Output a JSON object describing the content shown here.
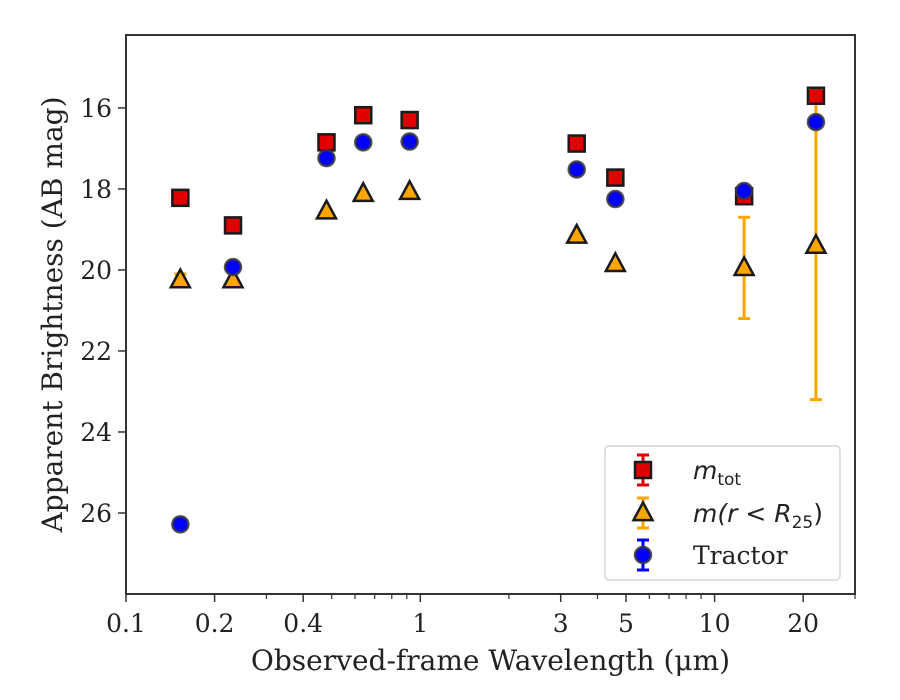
{
  "chart_data": {
    "type": "scatter",
    "title": "",
    "xlabel": "Observed-frame Wavelength (μm)",
    "ylabel": "Apparent Brightness (AB mag)",
    "xscale": "log",
    "xlim": [
      0.1,
      30
    ],
    "ylim": [
      28.0,
      14.2
    ],
    "y_inverted": true,
    "grid": false,
    "legend_position": "bottom-right",
    "xticks": [
      {
        "value": 0.1,
        "label": "0.1"
      },
      {
        "value": 0.2,
        "label": "0.2"
      },
      {
        "value": 0.4,
        "label": "0.4"
      },
      {
        "value": 1,
        "label": "1"
      },
      {
        "value": 3,
        "label": "3"
      },
      {
        "value": 5,
        "label": "5"
      },
      {
        "value": 10,
        "label": "10"
      },
      {
        "value": 20,
        "label": "20"
      }
    ],
    "yticks": [
      {
        "value": 16,
        "label": "16"
      },
      {
        "value": 18,
        "label": "18"
      },
      {
        "value": 20,
        "label": "20"
      },
      {
        "value": 22,
        "label": "22"
      },
      {
        "value": 24,
        "label": "24"
      },
      {
        "value": 26,
        "label": "26"
      }
    ],
    "series": [
      {
        "name": "m_tot",
        "legend_label": {
          "base": "m",
          "sub": "tot"
        },
        "marker": "square",
        "color": "#e00000",
        "edge_color": "#1a1a1a",
        "errorbar_color": "#e00000",
        "points": [
          {
            "x": 0.153,
            "y": 18.22
          },
          {
            "x": 0.231,
            "y": 18.9
          },
          {
            "x": 0.48,
            "y": 16.85
          },
          {
            "x": 0.64,
            "y": 16.18
          },
          {
            "x": 0.92,
            "y": 16.3
          },
          {
            "x": 3.4,
            "y": 16.88
          },
          {
            "x": 4.6,
            "y": 17.72
          },
          {
            "x": 12.6,
            "y": 18.18
          },
          {
            "x": 22.1,
            "y": 15.7
          }
        ]
      },
      {
        "name": "m(r < R25)",
        "legend_label": {
          "base": "m(r < R",
          "sub": "25",
          "suffix": ")"
        },
        "marker": "triangle",
        "color": "#ffa500",
        "edge_color": "#1a1a1a",
        "errorbar_color": "#ffa500",
        "points": [
          {
            "x": 0.153,
            "y": 20.25,
            "yerr": 0.15
          },
          {
            "x": 0.231,
            "y": 20.25
          },
          {
            "x": 0.48,
            "y": 18.55
          },
          {
            "x": 0.64,
            "y": 18.12
          },
          {
            "x": 0.92,
            "y": 18.07
          },
          {
            "x": 3.4,
            "y": 19.15
          },
          {
            "x": 4.6,
            "y": 19.85
          },
          {
            "x": 12.6,
            "y": 19.95,
            "yerr": 1.25
          },
          {
            "x": 22.1,
            "y": 19.4,
            "yerr": 3.8
          }
        ]
      },
      {
        "name": "Tractor",
        "legend_label": {
          "base": "Tractor"
        },
        "marker": "circle",
        "color": "#0000ff",
        "edge_color": "#3a3a3a",
        "errorbar_color": "#0000ff",
        "points": [
          {
            "x": 0.153,
            "y": 26.28
          },
          {
            "x": 0.231,
            "y": 19.93
          },
          {
            "x": 0.48,
            "y": 17.24
          },
          {
            "x": 0.64,
            "y": 16.85
          },
          {
            "x": 0.92,
            "y": 16.83
          },
          {
            "x": 3.4,
            "y": 17.52
          },
          {
            "x": 4.6,
            "y": 18.25
          },
          {
            "x": 12.6,
            "y": 18.05
          },
          {
            "x": 22.1,
            "y": 16.35
          }
        ]
      }
    ]
  }
}
